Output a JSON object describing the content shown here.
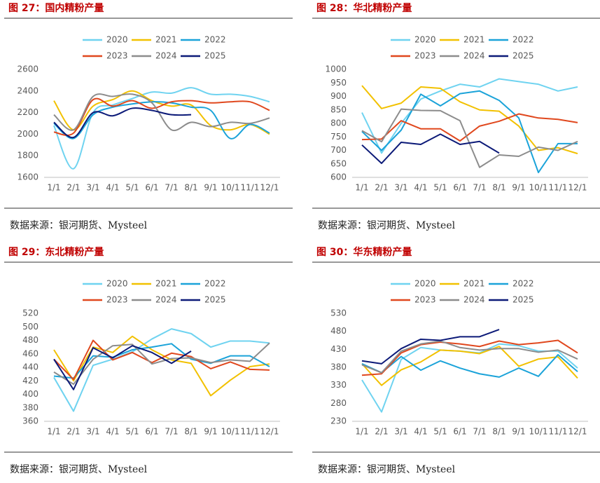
{
  "chart_data": [
    {
      "type": "line",
      "title": "图 27：国内精粉产量",
      "source": "数据来源：银河期货、Mysteel",
      "smooth": true,
      "categories": [
        "1/1",
        "2/1",
        "3/1",
        "4/1",
        "5/1",
        "6/1",
        "7/1",
        "8/1",
        "9/1",
        "10/1",
        "11/1",
        "12/1"
      ],
      "ylim": [
        1600,
        2600
      ],
      "yticks": [
        1600,
        1800,
        2000,
        2200,
        2400,
        2600
      ],
      "series": [
        {
          "name": "2020",
          "color": "#6fd3f0",
          "values": [
            2080,
            1680,
            2200,
            2270,
            2330,
            2390,
            2380,
            2430,
            2370,
            2370,
            2350,
            2300
          ]
        },
        {
          "name": "2021",
          "color": "#f2c100",
          "values": [
            2310,
            2040,
            2260,
            2320,
            2400,
            2310,
            2260,
            2270,
            2080,
            2040,
            2090,
            2000
          ]
        },
        {
          "name": "2022",
          "color": "#1ba3d9",
          "values": [
            2100,
            1960,
            2180,
            2250,
            2280,
            2300,
            2290,
            2250,
            2220,
            1960,
            2090,
            2010
          ]
        },
        {
          "name": "2023",
          "color": "#e0481e",
          "values": [
            2020,
            2010,
            2320,
            2260,
            2310,
            2240,
            2300,
            2310,
            2290,
            2300,
            2300,
            2220
          ]
        },
        {
          "name": "2024",
          "color": "#8c8c8c",
          "values": [
            2180,
            2040,
            2350,
            2350,
            2370,
            2290,
            2040,
            2110,
            2070,
            2110,
            2100,
            2150
          ]
        },
        {
          "name": "2025",
          "color": "#0c1a78",
          "values": [
            2110,
            1970,
            2200,
            2170,
            2240,
            2220,
            2180,
            2180,
            null,
            null,
            null,
            null
          ]
        }
      ]
    },
    {
      "type": "line",
      "title": "图 28：华北精粉产量",
      "source": "数据来源：银河期货、Mysteel",
      "categories": [
        "1/1",
        "2/1",
        "3/1",
        "4/1",
        "5/1",
        "6/1",
        "7/1",
        "8/1",
        "9/1",
        "10/1",
        "11/1",
        "12/1"
      ],
      "ylim": [
        600,
        1000
      ],
      "yticks": [
        600,
        650,
        700,
        750,
        800,
        850,
        900,
        950,
        1000
      ],
      "series": [
        {
          "name": "2020",
          "color": "#6fd3f0",
          "values": [
            840,
            690,
            800,
            890,
            920,
            945,
            935,
            965,
            955,
            945,
            920,
            935
          ]
        },
        {
          "name": "2021",
          "color": "#f2c100",
          "values": [
            940,
            855,
            875,
            935,
            930,
            880,
            850,
            845,
            790,
            700,
            710,
            688
          ]
        },
        {
          "name": "2022",
          "color": "#1ba3d9",
          "values": [
            770,
            700,
            775,
            908,
            865,
            910,
            920,
            885,
            820,
            618,
            725,
            725
          ]
        },
        {
          "name": "2023",
          "color": "#e0481e",
          "values": [
            740,
            742,
            810,
            780,
            780,
            735,
            790,
            808,
            835,
            820,
            815,
            803
          ]
        },
        {
          "name": "2024",
          "color": "#8c8c8c",
          "values": [
            773,
            732,
            853,
            848,
            847,
            810,
            637,
            683,
            678,
            712,
            700,
            733
          ]
        },
        {
          "name": "2025",
          "color": "#0c1a78",
          "values": [
            720,
            652,
            730,
            722,
            760,
            722,
            733,
            690,
            null,
            null,
            null,
            null
          ]
        }
      ]
    },
    {
      "type": "line",
      "title": "图 29：东北精粉产量",
      "source": "数据来源：银河期货、Mysteel",
      "categories": [
        "1/1",
        "2/1",
        "3/1",
        "4/1",
        "5/1",
        "6/1",
        "7/1",
        "8/1",
        "9/1",
        "10/1",
        "11/1",
        "12/1"
      ],
      "ylim": [
        360,
        520
      ],
      "yticks": [
        360,
        380,
        400,
        420,
        440,
        460,
        480,
        500,
        520
      ],
      "series": [
        {
          "name": "2020",
          "color": "#6fd3f0",
          "values": [
            425,
            375,
            443,
            452,
            463,
            482,
            497,
            490,
            470,
            479,
            479,
            476
          ]
        },
        {
          "name": "2021",
          "color": "#f2c100",
          "values": [
            466,
            420,
            470,
            462,
            486,
            466,
            451,
            446,
            398,
            421,
            441,
            445
          ]
        },
        {
          "name": "2022",
          "color": "#1ba3d9",
          "values": [
            427,
            424,
            457,
            455,
            466,
            470,
            475,
            452,
            446,
            457,
            457,
            441
          ]
        },
        {
          "name": "2023",
          "color": "#e0481e",
          "values": [
            452,
            422,
            480,
            451,
            462,
            447,
            461,
            456,
            438,
            448,
            437,
            436
          ]
        },
        {
          "name": "2024",
          "color": "#8c8c8c",
          "values": [
            433,
            415,
            452,
            472,
            474,
            445,
            453,
            454,
            447,
            451,
            449,
            476
          ]
        },
        {
          "name": "2025",
          "color": "#0c1a78",
          "values": [
            452,
            407,
            469,
            454,
            472,
            462,
            446,
            464,
            null,
            null,
            null,
            null
          ]
        }
      ]
    },
    {
      "type": "line",
      "title": "图 30：华东精粉产量",
      "source": "数据来源：银河期货、Mysteel",
      "categories": [
        "1/1",
        "2/1",
        "3/1",
        "4/1",
        "5/1",
        "6/1",
        "7/1",
        "8/1",
        "9/1",
        "10/1",
        "11/1",
        "12/1"
      ],
      "ylim": [
        230,
        530
      ],
      "yticks": [
        230,
        280,
        330,
        380,
        430,
        480,
        530
      ],
      "series": [
        {
          "name": "2020",
          "color": "#6fd3f0",
          "values": [
            345,
            256,
            402,
            435,
            428,
            425,
            420,
            445,
            440,
            425,
            425,
            378
          ]
        },
        {
          "name": "2021",
          "color": "#f2c100",
          "values": [
            390,
            330,
            373,
            395,
            428,
            425,
            418,
            438,
            383,
            403,
            409,
            350
          ]
        },
        {
          "name": "2022",
          "color": "#1ba3d9",
          "values": [
            390,
            365,
            410,
            372,
            398,
            378,
            362,
            353,
            378,
            355,
            415,
            368
          ]
        },
        {
          "name": "2023",
          "color": "#e0481e",
          "values": [
            358,
            362,
            420,
            443,
            450,
            445,
            438,
            453,
            443,
            448,
            455,
            420
          ]
        },
        {
          "name": "2024",
          "color": "#8c8c8c",
          "values": [
            387,
            365,
            425,
            445,
            453,
            435,
            428,
            432,
            432,
            422,
            428,
            403
          ]
        },
        {
          "name": "2025",
          "color": "#0c1a78",
          "values": [
            398,
            390,
            432,
            458,
            455,
            465,
            465,
            485,
            null,
            null,
            null,
            null
          ]
        }
      ]
    }
  ]
}
